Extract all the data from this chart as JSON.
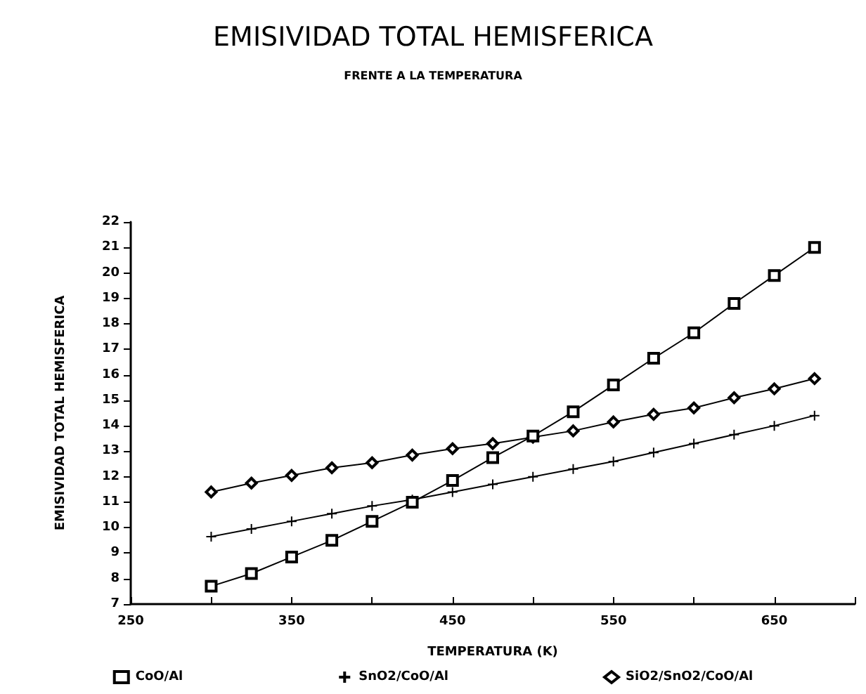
{
  "chart_data": {
    "type": "line",
    "title": "EMISIVIDAD TOTAL HEMISFERICA",
    "subtitle": "FRENTE A LA TEMPERATURA",
    "xlabel": "TEMPERATURA (K)",
    "ylabel": "EMISIVIDAD TOTAL HEMISFERICA",
    "x": [
      300,
      325,
      350,
      375,
      400,
      425,
      450,
      475,
      500,
      525,
      550,
      575,
      600,
      625,
      650,
      675
    ],
    "series": [
      {
        "name": "CoO/Al",
        "color": "#000000",
        "marker": "square",
        "values": [
          7.7,
          8.2,
          8.85,
          9.5,
          10.25,
          11.0,
          11.85,
          12.75,
          13.6,
          14.55,
          15.6,
          16.65,
          17.65,
          18.8,
          19.9,
          21.0
        ]
      },
      {
        "name": "SnO2/CoO/Al",
        "color": "#000000",
        "marker": "cross",
        "values": [
          9.65,
          9.95,
          10.25,
          10.55,
          10.85,
          11.1,
          11.4,
          11.7,
          12.0,
          12.3,
          12.6,
          12.95,
          13.3,
          13.65,
          14.0,
          14.4
        ]
      },
      {
        "name": "SiO2/SnO2/CoO/Al",
        "color": "#000000",
        "marker": "diamond",
        "values": [
          11.4,
          11.75,
          12.05,
          12.35,
          12.55,
          12.85,
          13.1,
          13.3,
          13.55,
          13.8,
          14.15,
          14.45,
          14.7,
          15.1,
          15.45,
          15.85
        ]
      }
    ],
    "xlim": [
      250,
      700
    ],
    "xticks": [
      250,
      {
        "value": 300,
        "label": null
      },
      350,
      {
        "value": 400,
        "label": null
      },
      450,
      {
        "value": 500,
        "label": null
      },
      550,
      {
        "value": 600,
        "label": null
      },
      650,
      {
        "value": 700,
        "label": null
      }
    ],
    "ylim": [
      7,
      22
    ],
    "yticks": [
      7,
      8,
      9,
      10,
      11,
      12,
      13,
      14,
      15,
      16,
      17,
      18,
      19,
      20,
      21,
      22
    ],
    "grid": false,
    "legend": "bottom",
    "line_style": "solid"
  }
}
